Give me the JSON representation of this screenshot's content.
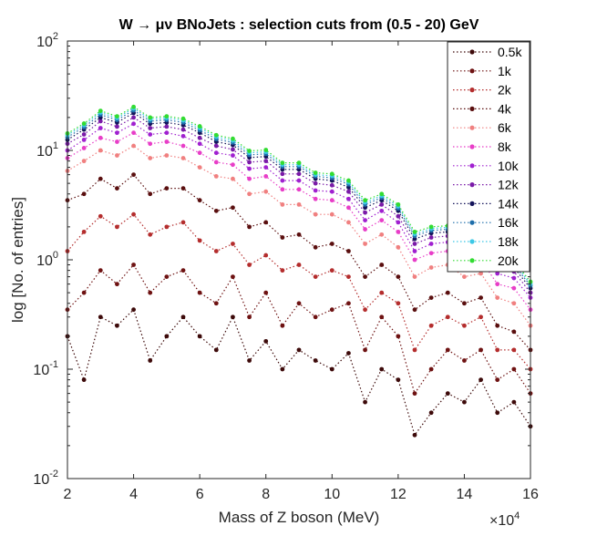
{
  "chart_data": {
    "type": "line",
    "title": "W → μν BNoJets : selection cuts from (0.5 - 20) GeV",
    "xlabel": "Mass of Z boson (MeV)",
    "ylabel": "log [No. of entries]",
    "x_multiplier_label": "×10",
    "x_multiplier_exp": "4",
    "xlim": [
      20000,
      160000
    ],
    "ylim": [
      0.01,
      100
    ],
    "yscale": "log",
    "grid": false,
    "legend_position": "top-right",
    "x_ticks": [
      {
        "v": 20000,
        "label": "2"
      },
      {
        "v": 40000,
        "label": "4"
      },
      {
        "v": 60000,
        "label": "6"
      },
      {
        "v": 80000,
        "label": "8"
      },
      {
        "v": 100000,
        "label": "10"
      },
      {
        "v": 120000,
        "label": "12"
      },
      {
        "v": 140000,
        "label": "14"
      },
      {
        "v": 160000,
        "label": "16"
      }
    ],
    "y_ticks": [
      {
        "v": 0.01,
        "base": "10",
        "exp": "-2"
      },
      {
        "v": 0.1,
        "base": "10",
        "exp": "-1"
      },
      {
        "v": 1,
        "base": "10",
        "exp": "0"
      },
      {
        "v": 10,
        "base": "10",
        "exp": "1"
      },
      {
        "v": 100,
        "base": "10",
        "exp": "2"
      }
    ],
    "x": [
      20000,
      25000,
      30000,
      35000,
      40000,
      45000,
      50000,
      55000,
      60000,
      65000,
      70000,
      75000,
      80000,
      85000,
      90000,
      95000,
      100000,
      105000,
      110000,
      115000,
      120000,
      125000,
      130000,
      135000,
      140000,
      145000,
      150000,
      155000,
      160000
    ],
    "series": [
      {
        "name": "0.5k",
        "color": "#3d0a0a",
        "values": [
          0.2,
          0.08,
          0.3,
          0.25,
          0.35,
          0.12,
          0.2,
          0.3,
          0.2,
          0.15,
          0.3,
          0.12,
          0.18,
          0.1,
          0.15,
          0.12,
          0.1,
          0.14,
          0.05,
          0.1,
          0.08,
          0.025,
          0.04,
          0.06,
          0.05,
          0.08,
          0.04,
          0.05,
          0.03
        ]
      },
      {
        "name": "1k",
        "color": "#6e1212",
        "values": [
          0.35,
          0.5,
          0.8,
          0.6,
          0.9,
          0.5,
          0.7,
          0.8,
          0.5,
          0.4,
          0.7,
          0.3,
          0.5,
          0.25,
          0.4,
          0.3,
          0.35,
          0.4,
          0.15,
          0.3,
          0.2,
          0.06,
          0.1,
          0.15,
          0.12,
          0.15,
          0.08,
          0.1,
          0.06
        ]
      },
      {
        "name": "2k",
        "color": "#b42d2d",
        "values": [
          1.2,
          1.8,
          2.5,
          2.0,
          2.6,
          1.7,
          2.0,
          2.2,
          1.5,
          1.2,
          1.4,
          0.9,
          1.1,
          0.8,
          0.9,
          0.7,
          0.8,
          0.7,
          0.35,
          0.5,
          0.4,
          0.15,
          0.25,
          0.3,
          0.25,
          0.3,
          0.15,
          0.15,
          0.1
        ]
      },
      {
        "name": "4k",
        "color": "#5a0f0f",
        "values": [
          3.5,
          4.0,
          5.5,
          4.5,
          6.0,
          4.0,
          4.5,
          4.5,
          3.5,
          2.8,
          3.0,
          2.0,
          2.2,
          1.6,
          1.7,
          1.3,
          1.4,
          1.2,
          0.7,
          0.9,
          0.7,
          0.35,
          0.45,
          0.5,
          0.4,
          0.45,
          0.25,
          0.22,
          0.15
        ]
      },
      {
        "name": "6k",
        "color": "#f08080",
        "values": [
          6.5,
          8.0,
          10.0,
          9.0,
          11.0,
          8.5,
          9.0,
          8.5,
          7.0,
          5.8,
          5.5,
          4.0,
          4.2,
          3.2,
          3.2,
          2.6,
          2.6,
          2.2,
          1.4,
          1.7,
          1.3,
          0.7,
          0.85,
          0.9,
          0.7,
          0.75,
          0.45,
          0.4,
          0.25
        ]
      },
      {
        "name": "8k",
        "color": "#e83ec8",
        "values": [
          8.5,
          10.5,
          13.0,
          12.0,
          14.5,
          11.5,
          12.0,
          11.0,
          9.5,
          7.8,
          7.4,
          5.5,
          5.8,
          4.4,
          4.4,
          3.6,
          3.5,
          3.0,
          1.9,
          2.3,
          1.8,
          1.0,
          1.15,
          1.2,
          0.95,
          1.0,
          0.6,
          0.55,
          0.35
        ]
      },
      {
        "name": "10k",
        "color": "#a020d0",
        "values": [
          10.0,
          12.5,
          16.0,
          14.5,
          17.5,
          14.0,
          14.5,
          13.5,
          11.5,
          9.5,
          9.0,
          6.8,
          7.0,
          5.3,
          5.3,
          4.3,
          4.2,
          3.6,
          2.3,
          2.8,
          2.2,
          1.2,
          1.4,
          1.45,
          1.15,
          1.2,
          0.75,
          0.68,
          0.45
        ]
      },
      {
        "name": "12k",
        "color": "#7a1aa8",
        "values": [
          11.5,
          14.0,
          18.5,
          16.5,
          20.0,
          16.0,
          16.5,
          15.5,
          13.0,
          11.0,
          10.2,
          7.8,
          8.0,
          6.1,
          6.1,
          5.0,
          4.8,
          4.2,
          2.7,
          3.2,
          2.5,
          1.4,
          1.6,
          1.65,
          1.3,
          1.4,
          0.85,
          0.78,
          0.5
        ]
      },
      {
        "name": "14k",
        "color": "#14145a",
        "values": [
          12.5,
          15.5,
          20.0,
          18.0,
          22.0,
          17.5,
          18.0,
          17.0,
          14.5,
          12.0,
          11.2,
          8.6,
          8.8,
          6.7,
          6.7,
          5.5,
          5.3,
          4.6,
          3.0,
          3.5,
          2.8,
          1.55,
          1.75,
          1.8,
          1.45,
          1.5,
          0.95,
          0.85,
          0.55
        ]
      },
      {
        "name": "16k",
        "color": "#1e6eaa",
        "values": [
          13.2,
          16.3,
          21.2,
          19.0,
          23.2,
          18.5,
          19.0,
          18.0,
          15.3,
          12.7,
          11.8,
          9.1,
          9.3,
          7.1,
          7.1,
          5.8,
          5.6,
          4.9,
          3.2,
          3.7,
          2.95,
          1.65,
          1.85,
          1.9,
          1.52,
          1.6,
          1.0,
          0.9,
          0.58
        ]
      },
      {
        "name": "18k",
        "color": "#3cc8e6",
        "values": [
          13.8,
          17.0,
          22.2,
          19.8,
          24.2,
          19.3,
          19.8,
          18.8,
          16.0,
          13.3,
          12.3,
          9.5,
          9.7,
          7.4,
          7.4,
          6.0,
          5.85,
          5.1,
          3.35,
          3.85,
          3.08,
          1.72,
          1.93,
          1.98,
          1.58,
          1.67,
          1.05,
          0.94,
          0.6
        ]
      },
      {
        "name": "20k",
        "color": "#32dc32",
        "values": [
          14.3,
          17.6,
          23.0,
          20.5,
          25.0,
          20.0,
          20.5,
          19.5,
          16.6,
          13.8,
          12.8,
          9.9,
          10.1,
          7.7,
          7.7,
          6.25,
          6.1,
          5.3,
          3.5,
          4.0,
          3.2,
          1.8,
          2.0,
          2.05,
          1.65,
          1.73,
          1.1,
          0.98,
          0.63
        ]
      }
    ]
  }
}
